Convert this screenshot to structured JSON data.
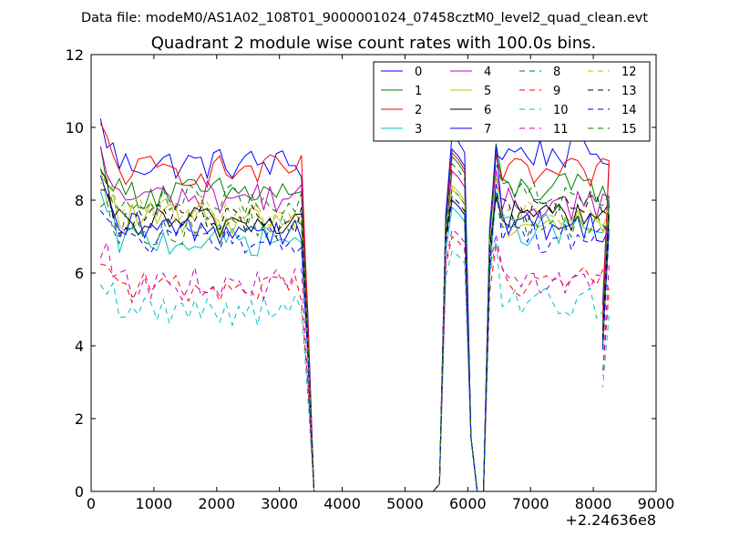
{
  "header": {
    "data_file": "Data file: modeM0/AS1A02_108T01_9000001024_07458cztM0_level2_quad_clean.evt"
  },
  "chart_data": {
    "type": "line",
    "title": "Quadrant 2 module wise count rates with 100.0s bins.",
    "xlabel": "",
    "ylabel": "",
    "x_offset_label": "+2.24636e8",
    "xlim": [
      0,
      9000
    ],
    "ylim": [
      0,
      12
    ],
    "xticks": [
      0,
      1000,
      2000,
      3000,
      4000,
      5000,
      6000,
      7000,
      8000,
      9000
    ],
    "yticks": [
      0,
      2,
      4,
      6,
      8,
      10,
      12
    ],
    "grid": false,
    "legend": {
      "placement": "top-right",
      "columns": 4
    },
    "segments": [
      {
        "x0": 150,
        "step": 100,
        "count": 33
      },
      {
        "x0": 3450,
        "step": 100,
        "count": 20,
        "values": "zero"
      },
      {
        "x0": 5550,
        "step": 100,
        "count": 7
      },
      {
        "x0": 6250,
        "step": 100,
        "count": 20
      }
    ],
    "series": [
      {
        "name": "0",
        "color": "#0000ff",
        "dash": "solid",
        "levels": [
          9.0,
          9.0,
          9.3
        ],
        "mid": [
          9.4,
          7.5
        ],
        "scale": 1.0
      },
      {
        "name": "1",
        "color": "#007f00",
        "dash": "solid",
        "levels": [
          8.2,
          8.0,
          8.3
        ],
        "mid": [
          9.2,
          7.3
        ],
        "scale": 1.0
      },
      {
        "name": "2",
        "color": "#ff0000",
        "dash": "solid",
        "levels": [
          8.8,
          8.6,
          8.7
        ],
        "mid": [
          9.3,
          7.6
        ],
        "scale": 1.0
      },
      {
        "name": "3",
        "color": "#00bfbf",
        "dash": "solid",
        "levels": [
          6.9,
          7.0,
          7.2
        ],
        "mid": [
          7.8,
          6.6
        ],
        "scale": 1.0
      },
      {
        "name": "4",
        "color": "#bf00bf",
        "dash": "solid",
        "levels": [
          8.1,
          7.7,
          7.9
        ],
        "mid": [
          8.8,
          7.0
        ],
        "scale": 1.0
      },
      {
        "name": "5",
        "color": "#bfbf00",
        "dash": "solid",
        "levels": [
          7.5,
          7.1,
          7.4
        ],
        "mid": [
          8.4,
          6.9
        ],
        "scale": 1.0
      },
      {
        "name": "6",
        "color": "#000000",
        "dash": "solid",
        "levels": [
          7.4,
          7.3,
          7.6
        ],
        "mid": [
          8.0,
          7.0
        ],
        "scale": 1.0
      },
      {
        "name": "7",
        "color": "#0000ff",
        "dash": "solid",
        "levels": [
          7.2,
          7.0,
          7.3
        ],
        "mid": [
          9.8,
          7.6
        ],
        "scale": 1.0
      },
      {
        "name": "8",
        "color": "#007f00",
        "dash": "dashed",
        "levels": [
          7.2,
          7.0,
          7.4
        ],
        "mid": [
          8.3,
          7.1
        ],
        "scale": 1.0
      },
      {
        "name": "9",
        "color": "#ff0000",
        "dash": "dashed",
        "levels": [
          5.6,
          5.5,
          5.8
        ],
        "mid": [
          7.0,
          6.2
        ],
        "scale": 1.0
      },
      {
        "name": "10",
        "color": "#00bfbf",
        "dash": "dashed",
        "levels": [
          5.0,
          4.8,
          5.2
        ],
        "mid": [
          6.6,
          5.9
        ],
        "scale": 1.0
      },
      {
        "name": "11",
        "color": "#bf00bf",
        "dash": "dashed",
        "levels": [
          5.7,
          5.6,
          5.8
        ],
        "mid": [
          7.2,
          6.3
        ],
        "scale": 1.0
      },
      {
        "name": "12",
        "color": "#bfbf00",
        "dash": "dashed",
        "levels": [
          7.7,
          7.5,
          7.6
        ],
        "mid": [
          8.3,
          7.2
        ],
        "scale": 1.0
      },
      {
        "name": "13",
        "color": "#000000",
        "dash": "dashed",
        "levels": [
          7.5,
          7.5,
          7.7
        ],
        "mid": [
          8.1,
          7.1
        ],
        "scale": 1.0
      },
      {
        "name": "14",
        "color": "#0000ff",
        "dash": "dashed",
        "levels": [
          6.9,
          6.9,
          7.0
        ],
        "mid": [
          8.0,
          6.8
        ],
        "scale": 1.0
      },
      {
        "name": "15",
        "color": "#007f00",
        "dash": "dashed",
        "levels": [
          8.0,
          7.9,
          8.1
        ],
        "mid": [
          9.0,
          7.3
        ],
        "scale": 1.0
      }
    ]
  }
}
